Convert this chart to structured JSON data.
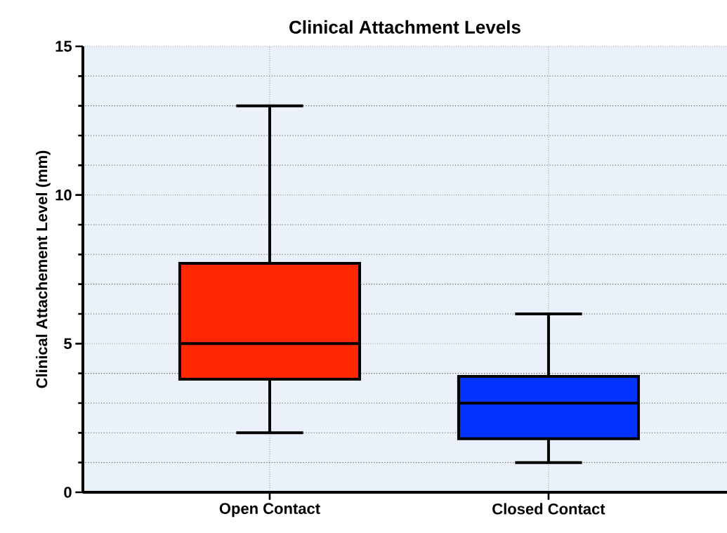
{
  "chart_data": {
    "type": "box",
    "title": "Clinical Attachment Levels",
    "ylabel": "Clinical Attachement Level (mm)",
    "categories": [
      "Open Contact",
      "Closed Contact"
    ],
    "colors": [
      "#ff2600",
      "#0433ff"
    ],
    "boxes": [
      {
        "low": 2,
        "q1": 3.8,
        "median": 5,
        "q3": 7.7,
        "high": 13
      },
      {
        "low": 1,
        "q1": 1.8,
        "median": 3,
        "q3": 3.9,
        "high": 6
      }
    ],
    "ylim": [
      0,
      15
    ],
    "yticks": [
      0,
      5,
      10,
      15
    ],
    "grid": true
  }
}
